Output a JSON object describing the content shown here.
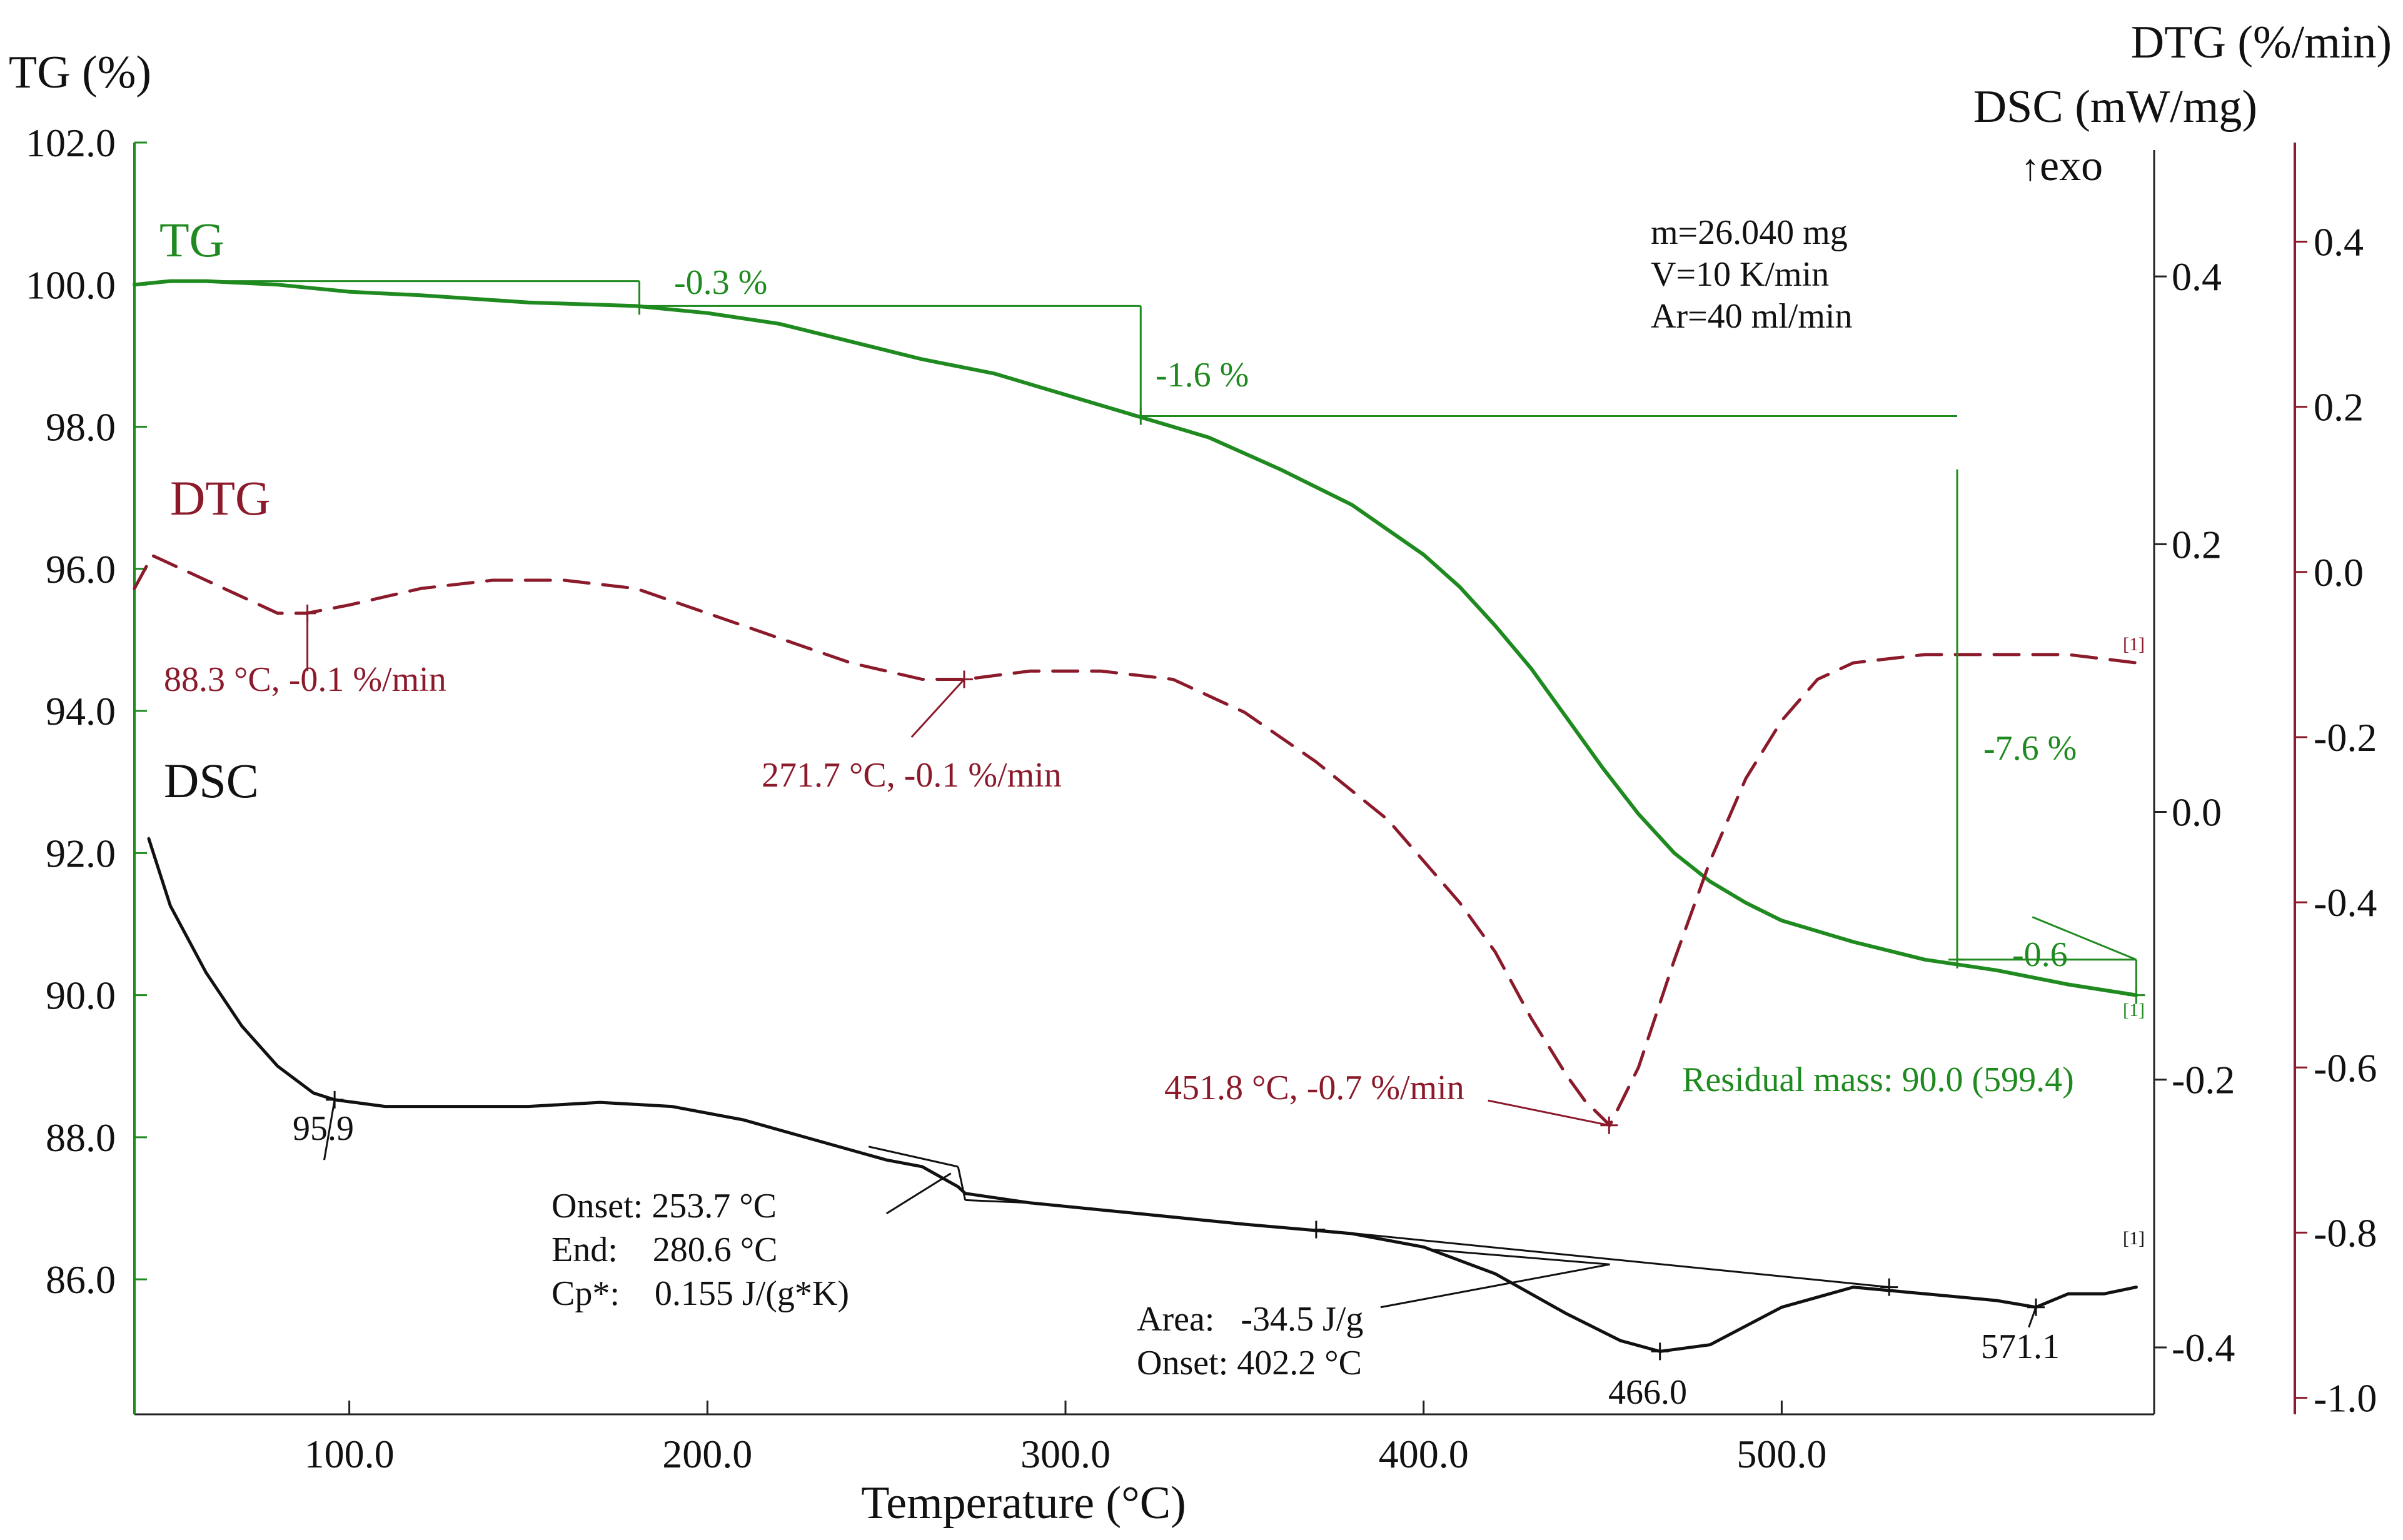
{
  "chart_data": {
    "type": "line",
    "info": [
      "m=26.040 mg",
      "V=10 K/min",
      "Ar=40 ml/min"
    ],
    "colors": {
      "tg": "#1f8a1f",
      "dtg": "#8b1a2b",
      "dsc": "#111111",
      "axis_right": "#8b1a2b"
    },
    "x_axis": {
      "label": "Temperature (°C)",
      "range": [
        40,
        604
      ],
      "ticks": [
        100,
        200,
        300,
        400,
        500
      ],
      "tick_labels": [
        "100.0",
        "200.0",
        "300.0",
        "400.0",
        "500.0"
      ]
    },
    "left_axis": {
      "label": "TG (%)",
      "range": [
        84.1,
        102.0
      ],
      "ticks": [
        86,
        88,
        90,
        92,
        94,
        96,
        98,
        100,
        102
      ],
      "tick_labels": [
        "86.0",
        "88.0",
        "90.0",
        "92.0",
        "94.0",
        "96.0",
        "98.0",
        "100.0",
        "102.0"
      ]
    },
    "dsc_axis": {
      "label": "DSC (mW/mg)",
      "exo_label": "exo",
      "range": [
        -0.45,
        0.5
      ],
      "ticks": [
        -0.4,
        -0.2,
        0.0,
        0.2,
        0.4
      ],
      "tick_labels": [
        "-0.4",
        "-0.2",
        "0.0",
        "0.2",
        "0.4"
      ]
    },
    "dtg_axis": {
      "label": "DTG (%/min)",
      "range": [
        -1.02,
        0.52
      ],
      "ticks": [
        -1.0,
        -0.8,
        -0.6,
        -0.4,
        -0.2,
        0.0,
        0.2,
        0.4
      ],
      "tick_labels": [
        "-1.0",
        "-0.8",
        "-0.6",
        "-0.4",
        "-0.2",
        "0.0",
        "0.2",
        "0.4"
      ]
    },
    "series": [
      {
        "name": "TG",
        "axis": "left",
        "style": "solid",
        "x": [
          40,
          50,
          60,
          80,
          100,
          120,
          150,
          180,
          200,
          220,
          240,
          260,
          280,
          300,
          320,
          340,
          360,
          380,
          400,
          410,
          420,
          430,
          440,
          450,
          460,
          470,
          480,
          490,
          500,
          520,
          540,
          560,
          580,
          599
        ],
        "values": [
          100.0,
          100.05,
          100.05,
          100.0,
          99.9,
          99.85,
          99.75,
          99.7,
          99.6,
          99.45,
          99.2,
          98.95,
          98.75,
          98.45,
          98.15,
          97.85,
          97.4,
          96.9,
          96.2,
          95.75,
          95.2,
          94.6,
          93.9,
          93.2,
          92.55,
          92.0,
          91.6,
          91.3,
          91.05,
          90.75,
          90.5,
          90.35,
          90.15,
          90.0
        ]
      },
      {
        "name": "DTG",
        "axis": "dtg",
        "style": "dashed",
        "x": [
          40,
          45,
          50,
          60,
          70,
          80,
          88,
          100,
          120,
          140,
          160,
          180,
          200,
          220,
          240,
          260,
          272,
          290,
          300,
          310,
          330,
          350,
          370,
          390,
          410,
          420,
          430,
          440,
          445,
          452,
          460,
          470,
          480,
          490,
          500,
          510,
          520,
          540,
          560,
          580,
          599
        ],
        "values": [
          -0.02,
          0.02,
          0.01,
          -0.01,
          -0.03,
          -0.05,
          -0.05,
          -0.04,
          -0.02,
          -0.01,
          -0.01,
          -0.02,
          -0.05,
          -0.08,
          -0.11,
          -0.13,
          -0.13,
          -0.12,
          -0.12,
          -0.12,
          -0.13,
          -0.17,
          -0.23,
          -0.3,
          -0.4,
          -0.46,
          -0.54,
          -0.61,
          -0.64,
          -0.67,
          -0.6,
          -0.47,
          -0.35,
          -0.25,
          -0.18,
          -0.13,
          -0.11,
          -0.1,
          -0.1,
          -0.1,
          -0.11
        ]
      },
      {
        "name": "DSC",
        "axis": "dsc",
        "style": "solid",
        "x": [
          44,
          50,
          60,
          70,
          80,
          90,
          95.9,
          110,
          130,
          150,
          170,
          190,
          210,
          230,
          250,
          260,
          270,
          272,
          290,
          320,
          350,
          380,
          400,
          420,
          440,
          455,
          466,
          480,
          500,
          520,
          540,
          560,
          571,
          580,
          590,
          599
        ],
        "values": [
          -0.02,
          -0.07,
          -0.12,
          -0.16,
          -0.19,
          -0.21,
          -0.215,
          -0.22,
          -0.22,
          -0.22,
          -0.217,
          -0.22,
          -0.23,
          -0.245,
          -0.26,
          -0.265,
          -0.28,
          -0.285,
          -0.292,
          -0.3,
          -0.308,
          -0.315,
          -0.325,
          -0.345,
          -0.375,
          -0.395,
          -0.403,
          -0.398,
          -0.37,
          -0.355,
          -0.36,
          -0.365,
          -0.37,
          -0.36,
          -0.36,
          -0.355
        ]
      }
    ],
    "series_labels": {
      "tg": "TG",
      "dtg": "DTG",
      "dsc": "DSC"
    },
    "annotations": {
      "tg_step1": "-0.3 %",
      "tg_step2": "-1.6 %",
      "tg_step3": "-7.6 %",
      "tg_step4": "-0.6",
      "residual": "Residual  mass: 90.0 (599.4)",
      "dtg_peak1": "88.3 °C, -0.1 %/min",
      "dtg_peak2": "271.7 °C, -0.1 %/min",
      "dtg_peak3": "451.8 °C, -0.7 %/min",
      "dsc_point1": "95.9",
      "dsc_glass_onset": "Onset: 253.7 °C",
      "dsc_glass_end": "End:    280.6 °C",
      "dsc_glass_cp": "Cp*:    0.155 J/(g*K)",
      "dsc_area": "Area:   -34.5 J/g",
      "dsc_peak_onset": "Onset: 402.2 °C",
      "dsc_peak": "466.0",
      "dsc_point2": "571.1",
      "marker_dtg": "[1]",
      "marker_dsc": "[1]",
      "marker_tg": "[1]"
    }
  }
}
